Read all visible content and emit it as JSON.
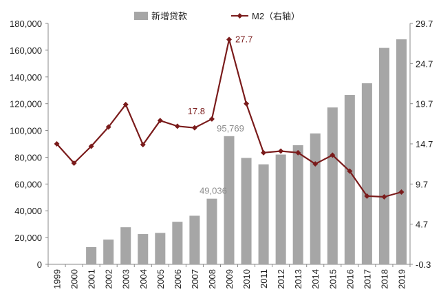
{
  "chart_data": {
    "type": "bar",
    "categories": [
      "1999",
      "2000",
      "2001",
      "2002",
      "2003",
      "2004",
      "2005",
      "2006",
      "2007",
      "2008",
      "2009",
      "2010",
      "2011",
      "2012",
      "2013",
      "2014",
      "2015",
      "2016",
      "2017",
      "2018",
      "2019"
    ],
    "series": [
      {
        "name": "新增贷款",
        "type": "bar",
        "axis": "left",
        "color": "#a6a6a6",
        "values": [
          0,
          0,
          12900,
          18500,
          27700,
          22600,
          23500,
          31800,
          36300,
          49036,
          95769,
          79500,
          74700,
          82000,
          89000,
          97800,
          117200,
          126500,
          135300,
          161700,
          168100
        ]
      },
      {
        "name": "M2（右轴）",
        "type": "line",
        "axis": "right",
        "color": "#7a1b1b",
        "values": [
          14.7,
          12.3,
          14.4,
          16.8,
          19.6,
          14.6,
          17.6,
          16.9,
          16.7,
          17.8,
          27.7,
          19.7,
          13.6,
          13.8,
          13.6,
          12.2,
          13.3,
          11.3,
          8.2,
          8.1,
          8.7
        ]
      }
    ],
    "y_left": {
      "min": 0,
      "max": 180000,
      "ticks": [
        "0",
        "20,000",
        "40,000",
        "60,000",
        "80,000",
        "100,000",
        "120,000",
        "140,000",
        "160,000",
        "180,000"
      ]
    },
    "y_right": {
      "min": -0.3,
      "max": 29.7,
      "ticks": [
        "-0.3",
        "4.7",
        "9.7",
        "14.7",
        "19.7",
        "24.7",
        "29.7"
      ]
    },
    "annotations": [
      {
        "series": 0,
        "index": 9,
        "text": "49,036"
      },
      {
        "series": 0,
        "index": 10,
        "text": "95,769"
      },
      {
        "series": 1,
        "index": 9,
        "text": "17.8"
      },
      {
        "series": 1,
        "index": 10,
        "text": "27.7"
      }
    ],
    "legend_position": "top-center"
  }
}
